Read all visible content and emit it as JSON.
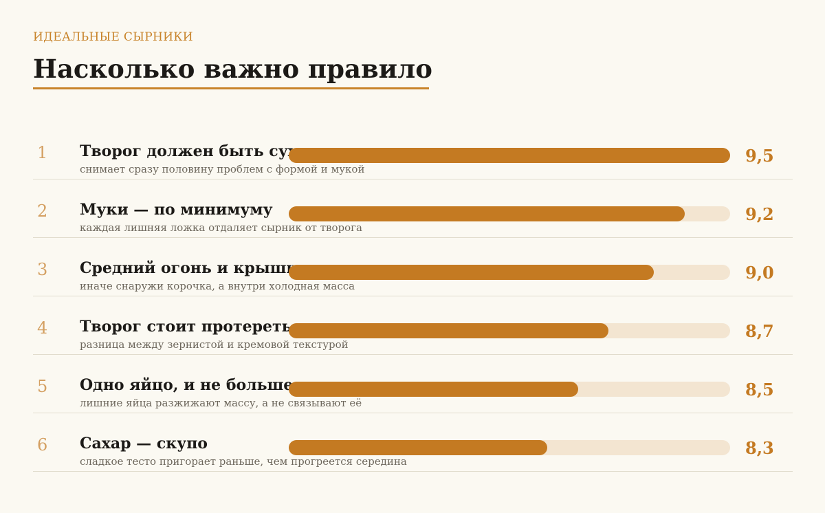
{
  "header": {
    "kicker": "ИДЕАЛЬНЫЕ СЫРНИКИ",
    "title": "Насколько важно правило"
  },
  "colors": {
    "accent": "#c47a22",
    "track": "#f3e5d1",
    "number": "#d4a062",
    "background": "#fbf9f2"
  },
  "chart_data": {
    "type": "bar",
    "orientation": "horizontal",
    "title": "Насколько важно правило",
    "categories": [
      "Творог должен быть сух",
      "Муки — по минимуму",
      "Средний огонь и крыши",
      "Творог стоит протереть",
      "Одно яйцо, и не больше",
      "Сахар — скупо"
    ],
    "values": [
      9.5,
      9.2,
      9.0,
      8.7,
      8.5,
      8.3
    ],
    "xlim": [
      6.6,
      9.5
    ],
    "grid": false,
    "rows": [
      {
        "rank": "1",
        "title": "Творог должен быть сух",
        "subtitle": "снимает сразу половину проблем с формой и мукой",
        "value": 9.5,
        "label": "9,5"
      },
      {
        "rank": "2",
        "title": "Муки — по минимуму",
        "subtitle": "каждая лишняя ложка отдаляет сырник от творога",
        "value": 9.2,
        "label": "9,2"
      },
      {
        "rank": "3",
        "title": "Средний огонь и крыши",
        "subtitle": "иначе снаружи корочка, а внутри холодная масса",
        "value": 9.0,
        "label": "9,0"
      },
      {
        "rank": "4",
        "title": "Творог стоит протереть",
        "subtitle": "разница между зернистой и кремовой текстурой",
        "value": 8.7,
        "label": "8,7"
      },
      {
        "rank": "5",
        "title": "Одно яйцо, и не больше",
        "subtitle": "лишние яйца разжижают массу, а не связывают её",
        "value": 8.5,
        "label": "8,5"
      },
      {
        "rank": "6",
        "title": "Сахар — скупо",
        "subtitle": "сладкое тесто пригорает раньше, чем прогреется середина",
        "value": 8.3,
        "label": "8,3"
      }
    ]
  }
}
